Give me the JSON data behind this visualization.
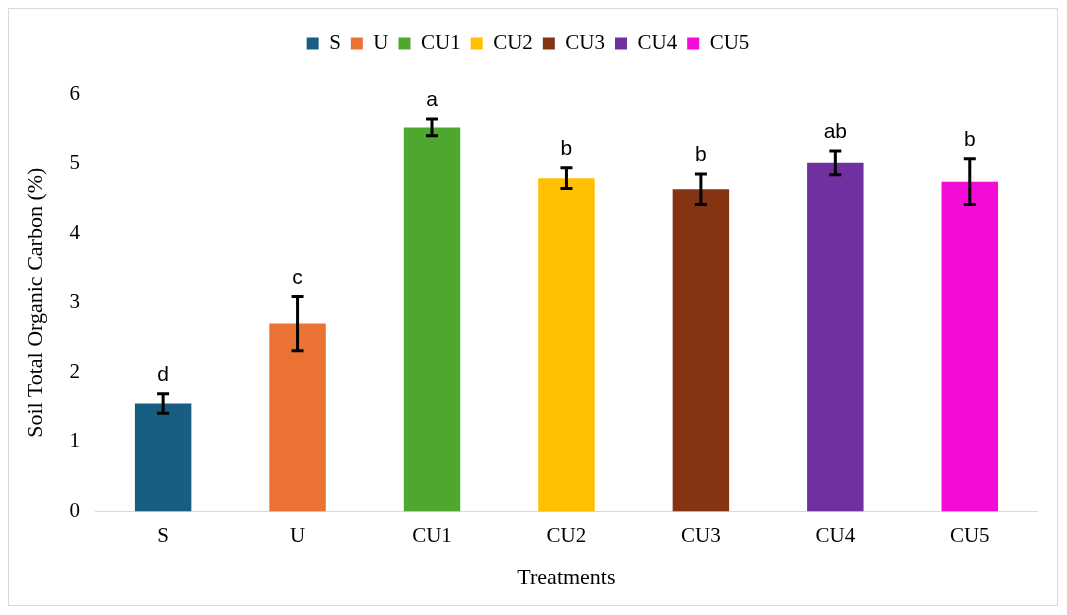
{
  "chart_data": {
    "type": "bar",
    "xlabel": "Treatments",
    "ylabel": "Soil Total Organic Carbon (%)",
    "categories": [
      "S",
      "U",
      "CU1",
      "CU2",
      "CU3",
      "CU4",
      "CU5"
    ],
    "series": [
      {
        "name": "S",
        "color": "#175e82",
        "values": [
          1.55,
          null,
          null,
          null,
          null,
          null,
          null
        ],
        "errors": [
          0.14,
          null,
          null,
          null,
          null,
          null,
          null
        ]
      },
      {
        "name": "U",
        "color": "#ea7233",
        "values": [
          null,
          2.7,
          null,
          null,
          null,
          null,
          null
        ],
        "errors": [
          null,
          0.39,
          null,
          null,
          null,
          null,
          null
        ]
      },
      {
        "name": "CU1",
        "color": "#4ea72e",
        "values": [
          null,
          null,
          5.52,
          null,
          null,
          null,
          null
        ],
        "errors": [
          null,
          null,
          0.12,
          null,
          null,
          null,
          null
        ]
      },
      {
        "name": "CU2",
        "color": "#ffc000",
        "values": [
          null,
          null,
          null,
          4.79,
          null,
          null,
          null
        ],
        "errors": [
          null,
          null,
          null,
          0.15,
          null,
          null,
          null
        ]
      },
      {
        "name": "CU3",
        "color": "#843313",
        "values": [
          null,
          null,
          null,
          null,
          4.63,
          null,
          null
        ],
        "errors": [
          null,
          null,
          null,
          null,
          0.22,
          null,
          null
        ]
      },
      {
        "name": "CU4",
        "color": "#7030a0",
        "values": [
          null,
          null,
          null,
          null,
          null,
          5.01,
          null
        ],
        "errors": [
          null,
          null,
          null,
          null,
          null,
          0.17,
          null
        ]
      },
      {
        "name": "CU5",
        "color": "#f20cd6",
        "values": [
          null,
          null,
          null,
          null,
          null,
          null,
          4.74
        ],
        "errors": [
          null,
          null,
          null,
          null,
          null,
          null,
          0.33
        ]
      }
    ],
    "ylim": [
      0,
      6
    ],
    "yticks": [
      0,
      1,
      2,
      3,
      4,
      5,
      6
    ],
    "grid": false,
    "legend": "top",
    "annotations": [
      "d",
      "c",
      "a",
      "b",
      "b",
      "ab",
      "b"
    ]
  }
}
